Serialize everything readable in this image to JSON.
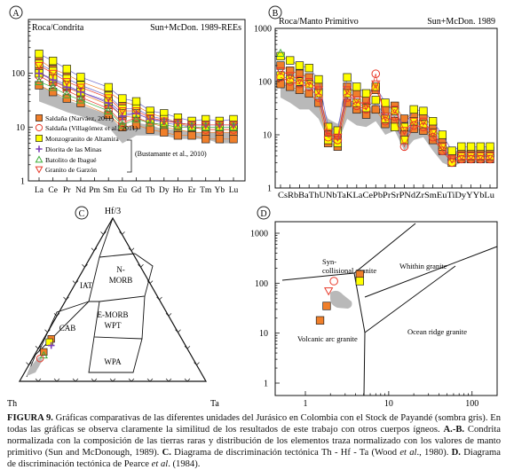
{
  "figure_number": "FIGURA 9.",
  "caption": {
    "p1": " Gráficas comparativas de las diferentes unidades del Jurásico en Colombia con el Stock de Payandé (sombra gris). En todas las gráficas se observa claramente la similitud de los resultados de este trabajo con otros cuerpos ígneos. ",
    "ab": "A.-B.",
    "p2": " Condrita normalizada con la composición de las tierras raras y distribución de los elementos traza normalizado con los valores de manto primitivo (Sun and McDonough, 1989). ",
    "c": "C.",
    "p3": " Diagrama de discriminación tectónica Th - Hf - Ta (Wood ",
    "etal1": "et al",
    "p4": "., 1980). ",
    "d": "D.",
    "p5": " Diagrama de discriminación tectónica de Pearce ",
    "etal2": "et al",
    "p6": ". (1984)."
  },
  "colors": {
    "orange": "#f07f2a",
    "yellow": "#ffff00",
    "red": "#e83a2a",
    "purple": "#7a3db8",
    "green": "#3fae3a",
    "gray": "#b9b9b9"
  },
  "chart_data": [
    {
      "panel": "A",
      "type": "line",
      "title_left": "Roca/Condrita",
      "title_right": "Sun+McDon. 1989-REEs",
      "categories": [
        "La",
        "Ce",
        "Pr",
        "Nd",
        "Pm",
        "Sm",
        "Eu",
        "Gd",
        "Tb",
        "Dy",
        "Ho",
        "Er",
        "Tm",
        "Yb",
        "Lu"
      ],
      "yscale": "log",
      "ylim": [
        1,
        1000
      ],
      "yticks": [
        "1",
        "10",
        "100"
      ],
      "legend": [
        {
          "label": "Saldaña (Narváez, 2011)",
          "marker": "square",
          "color": "#f07f2a"
        },
        {
          "label": "Saldaña (Villagómez et al., 2011)",
          "marker": "circle",
          "color": "#e83a2a"
        },
        {
          "label": "Monzogranito de Altamira",
          "marker": "square",
          "color": "#ffff00"
        },
        {
          "label": "Diorita de las Minas",
          "marker": "plus",
          "color": "#7a3db8"
        },
        {
          "label": "Batolito de Ibagué",
          "marker": "triangle-up",
          "color": "#3fae3a"
        },
        {
          "label": "Granito de Garzón",
          "marker": "triangle-down",
          "color": "#e83a2a"
        }
      ],
      "bracket_label": "(Bustamante et al., 2010)",
      "shade": {
        "upper": [
          60,
          45,
          32,
          26,
          null,
          17,
          9,
          12,
          11,
          9,
          9,
          8,
          8,
          8,
          8
        ],
        "lower": [
          30,
          24,
          19,
          16,
          null,
          10,
          5,
          7,
          7,
          7,
          6,
          6,
          6,
          5,
          5
        ]
      },
      "series": [
        {
          "name": "Saldaña (Narváez, 2011)",
          "marker": "square",
          "color": "#f07f2a",
          "values": [
            [
              180,
              120,
              95,
              70,
              null,
              45,
              30,
              25,
              18,
              15,
              12,
              10,
              9,
              9,
              9
            ],
            [
              110,
              70,
              55,
              42,
              null,
              26,
              16,
              15,
              12,
              10,
              9,
              8,
              8,
              8,
              8
            ],
            [
              60,
              45,
              34,
              28,
              null,
              17,
              10,
              11,
              9,
              8,
              7,
              7,
              6,
              6,
              6
            ]
          ]
        },
        {
          "name": "Saldaña (Villagómez et al., 2011)",
          "marker": "circle",
          "color": "#e83a2a",
          "values": [
            [
              90,
              65,
              48,
              36,
              null,
              22,
              12,
              15,
              12,
              11,
              10,
              10,
              9,
              9,
              9
            ]
          ]
        },
        {
          "name": "Monzogranito de Altamira",
          "marker": "square",
          "color": "#ffff00",
          "values": [
            [
              230,
              170,
              120,
              85,
              null,
              55,
              34,
              30,
              20,
              18,
              15,
              13,
              14,
              13,
              14
            ],
            [
              150,
              110,
              80,
              60,
              null,
              38,
              22,
              22,
              16,
              14,
              12,
              11,
              11,
              11,
              11
            ],
            [
              100,
              80,
              60,
              45,
              null,
              30,
              18,
              18,
              14,
              12,
              11,
              10,
              10,
              10,
              10
            ]
          ]
        },
        {
          "name": "Diorita de las Minas",
          "marker": "plus",
          "color": "#7a3db8",
          "values": [
            [
              100,
              75,
              55,
              45,
              null,
              28,
              16,
              18,
              14,
              13,
              12,
              11,
              11,
              11,
              11
            ]
          ]
        },
        {
          "name": "Batolito de Ibagué",
          "marker": "triangle-up",
          "color": "#3fae3a",
          "values": [
            [
              70,
              55,
              40,
              32,
              null,
              20,
              11,
              14,
              12,
              11,
              10,
              10,
              10,
              10,
              10
            ]
          ]
        },
        {
          "name": "Granito de Garzón",
          "marker": "triangle-down",
          "color": "#e83a2a",
          "values": [
            [
              140,
              100,
              70,
              55,
              null,
              35,
              20,
              20,
              15,
              13,
              12,
              11,
              11,
              11,
              11
            ]
          ]
        }
      ]
    },
    {
      "panel": "B",
      "type": "line",
      "title_left": "Roca/Manto Primitivo",
      "title_right": "Sun+McDon. 1989",
      "categories": [
        "Cs",
        "Rb",
        "Ba",
        "Th",
        "U",
        "Nb",
        "Ta",
        "K",
        "La",
        "Ce",
        "Pb",
        "Pr",
        "Sr",
        "P",
        "Nd",
        "Zr",
        "Sm",
        "Eu",
        "Ti",
        "Dy",
        "Y",
        "Yb",
        "Lu"
      ],
      "category_label": "CsRbBaThUNbTaKLaCePbPrSrPNdZrSmEuTiDyYYbLu",
      "yscale": "log",
      "ylim": [
        1,
        1000
      ],
      "yticks": [
        "1",
        "10",
        "100",
        "1000"
      ],
      "shade": {
        "upper": [
          120,
          80,
          60,
          60,
          45,
          20,
          16,
          50,
          32,
          28,
          40,
          20,
          30,
          12,
          16,
          18,
          10,
          7,
          5,
          5,
          5,
          5,
          5
        ],
        "lower": [
          50,
          40,
          30,
          30,
          20,
          8,
          7,
          20,
          15,
          14,
          18,
          10,
          12,
          5,
          8,
          9,
          5,
          3,
          2.5,
          3,
          3,
          3,
          3
        ]
      },
      "series": [
        {
          "name": "orange",
          "marker": "square",
          "color": "#f07f2a",
          "values": [
            [
              200,
              160,
              140,
              120,
              80,
              10,
              9,
              80,
              60,
              45,
              70,
              30,
              35,
              20,
              25,
              22,
              14,
              8,
              4,
              5,
              5,
              5,
              5
            ],
            [
              90,
              80,
              70,
              60,
              40,
              7,
              6,
              40,
              30,
              24,
              30,
              16,
              18,
              10,
              13,
              12,
              8,
              5,
              3,
              3.5,
              3.5,
              3.5,
              3.5
            ]
          ]
        },
        {
          "name": "yellow",
          "marker": "square",
          "color": "#ffff00",
          "values": [
            [
              300,
              250,
              200,
              180,
              110,
              14,
              12,
              120,
              80,
              60,
              80,
              40,
              28,
              14,
              30,
              28,
              18,
              10,
              5,
              6,
              6,
              6,
              6
            ],
            [
              130,
              110,
              100,
              90,
              60,
              8,
              7,
              60,
              40,
              32,
              45,
              20,
              14,
              8,
              18,
              16,
              11,
              6,
              3,
              4,
              4,
              4,
              4
            ]
          ]
        },
        {
          "name": "circle",
          "marker": "circle",
          "color": "#e83a2a",
          "values": [
            [
              120,
              100,
              90,
              80,
              50,
              9,
              8,
              50,
              35,
              30,
              140,
              18,
              22,
              6,
              15,
              14,
              9,
              5,
              3,
              3.5,
              3.5,
              3.5,
              3.5
            ]
          ]
        },
        {
          "name": "triangle",
          "marker": "triangle-down",
          "color": "#e83a2a",
          "values": [
            [
              160,
              130,
              110,
              100,
              70,
              11,
              9,
              70,
              45,
              35,
              90,
              22,
              30,
              12,
              18,
              18,
              11,
              6,
              3.5,
              4,
              4,
              4,
              4
            ]
          ]
        },
        {
          "name": "green",
          "marker": "triangle-up",
          "color": "#3fae3a",
          "values": [
            [
              340,
              null,
              null,
              null,
              null,
              null,
              null,
              null,
              null,
              null,
              null,
              null,
              null,
              null,
              null,
              null,
              null,
              null,
              null,
              null,
              null,
              null,
              null
            ]
          ]
        }
      ]
    },
    {
      "panel": "C",
      "type": "ternary",
      "apex_top": "Hf/3",
      "apex_left": "Th",
      "apex_right": "Ta",
      "fields": [
        "IAT",
        "N-MORB",
        "E-MORB",
        "WPT",
        "CAB",
        "WPA"
      ],
      "points": [
        {
          "hf3": 0.26,
          "th": 0.7,
          "ta": 0.04,
          "marker": "square",
          "color": "#f07f2a"
        },
        {
          "hf3": 0.24,
          "th": 0.72,
          "ta": 0.04,
          "marker": "square",
          "color": "#ffff00"
        },
        {
          "hf3": 0.18,
          "th": 0.78,
          "ta": 0.04,
          "marker": "square",
          "color": "#f07f2a"
        },
        {
          "hf3": 0.22,
          "th": 0.72,
          "ta": 0.06,
          "marker": "plus",
          "color": "#7a3db8"
        },
        {
          "hf3": 0.16,
          "th": 0.79,
          "ta": 0.05,
          "marker": "triangle-up",
          "color": "#3fae3a"
        },
        {
          "hf3": 0.14,
          "th": 0.82,
          "ta": 0.04,
          "marker": "circle",
          "color": "#e83a2a"
        }
      ]
    },
    {
      "panel": "D",
      "type": "scatter",
      "xscale": "log",
      "yscale": "log",
      "xlim": [
        1,
        300
      ],
      "ylim": [
        1,
        2000
      ],
      "xticks": [
        "1",
        "10",
        "100"
      ],
      "yticks": [
        "1",
        "10",
        "100",
        "1000"
      ],
      "fields": [
        "Syn-collisional granite",
        "Whithin granite",
        "Ocean ridge granite",
        "Volcanic arc granite"
      ],
      "points": [
        {
          "x": 4.5,
          "y": 150,
          "marker": "square",
          "color": "#f07f2a"
        },
        {
          "x": 4.5,
          "y": 110,
          "marker": "square",
          "color": "#ffff00"
        },
        {
          "x": 2.2,
          "y": 110,
          "marker": "circle",
          "color": "#e83a2a"
        },
        {
          "x": 1.9,
          "y": 70,
          "marker": "triangle-down",
          "color": "#e83a2a"
        },
        {
          "x": 1.8,
          "y": 35,
          "marker": "square",
          "color": "#f07f2a"
        },
        {
          "x": 1.5,
          "y": 18,
          "marker": "square",
          "color": "#f07f2a"
        }
      ]
    }
  ]
}
